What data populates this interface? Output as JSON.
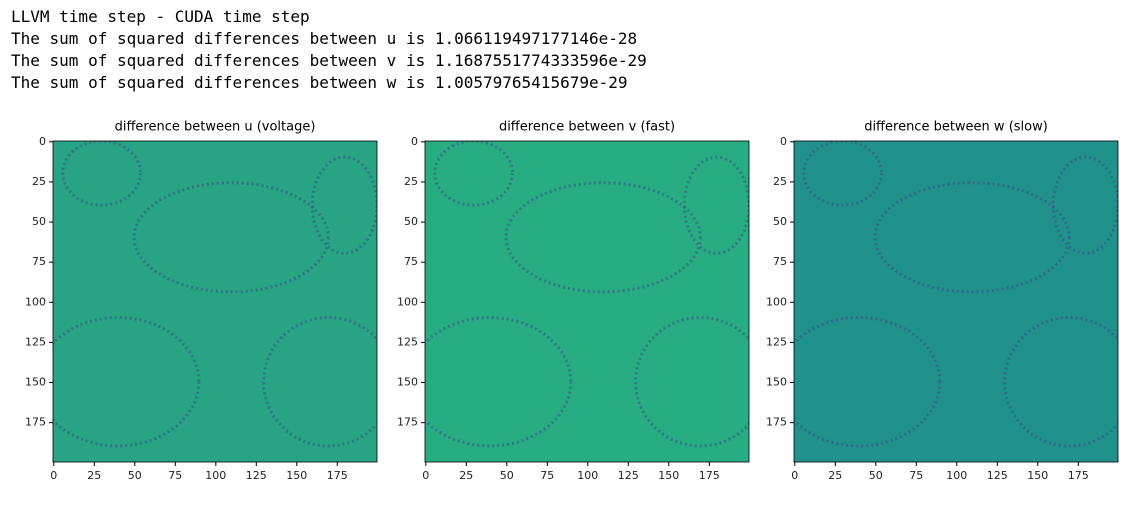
{
  "output": {
    "lines": [
      "LLVM time step - CUDA time step",
      "The sum of squared differences between u is 1.066119497177146e-28",
      "The sum of squared differences between v is 1.1687551774333596e-29",
      "The sum of squared differences between w is 1.00579765415679e-29"
    ]
  },
  "chart_data": [
    {
      "type": "heatmap",
      "title": "difference between u (voltage)",
      "color": "#28a383",
      "xlim": [
        -0.5,
        199.5
      ],
      "ylim": [
        199.5,
        -0.5
      ],
      "xticks": [
        0,
        25,
        50,
        75,
        100,
        125,
        150,
        175
      ],
      "yticks": [
        0,
        25,
        50,
        75,
        100,
        125,
        150,
        175
      ]
    },
    {
      "type": "heatmap",
      "title": "difference between v (fast)",
      "color": "#27ad81",
      "xlim": [
        -0.5,
        199.5
      ],
      "ylim": [
        199.5,
        -0.5
      ],
      "xticks": [
        0,
        25,
        50,
        75,
        100,
        125,
        150,
        175
      ],
      "yticks": [
        0,
        25,
        50,
        75,
        100,
        125,
        150,
        175
      ]
    },
    {
      "type": "heatmap",
      "title": "difference between w (slow)",
      "color": "#21918c",
      "xlim": [
        -0.5,
        199.5
      ],
      "ylim": [
        199.5,
        -0.5
      ],
      "xticks": [
        0,
        25,
        50,
        75,
        100,
        125,
        150,
        175
      ],
      "yticks": [
        0,
        25,
        50,
        75,
        100,
        125,
        150,
        175
      ]
    }
  ]
}
